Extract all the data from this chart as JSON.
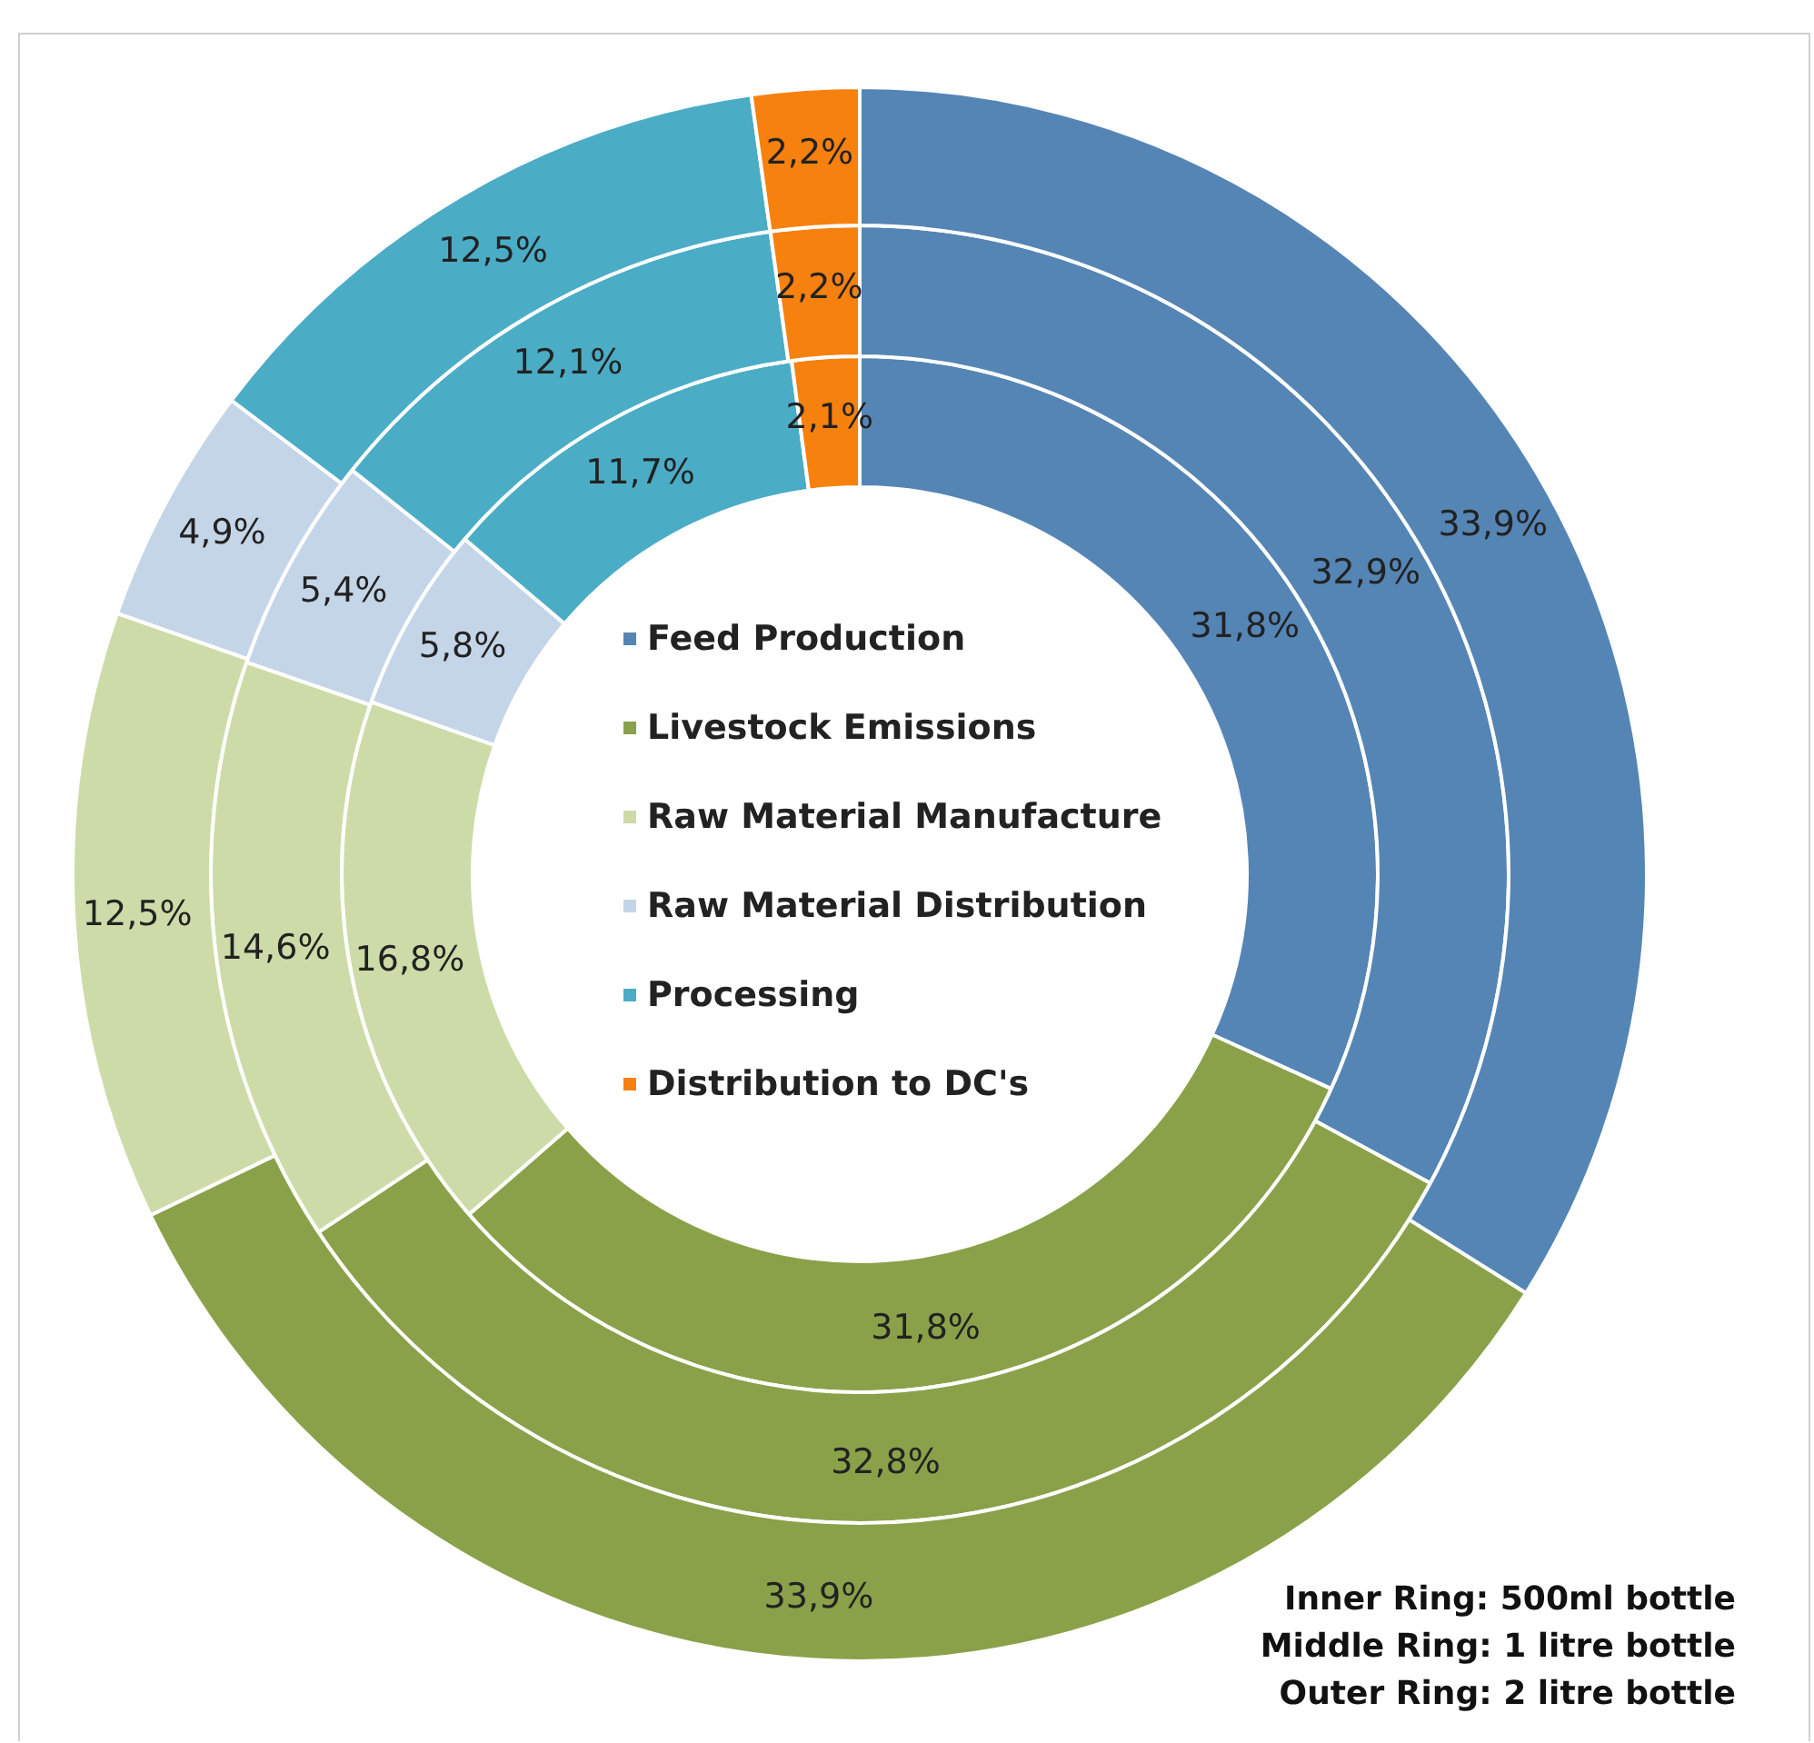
{
  "chart_data": {
    "type": "donut",
    "categories": [
      "Feed Production",
      "Livestock Emissions",
      "Raw Material Manufacture",
      "Raw Material Distribution",
      "Processing",
      "Distribution to DC's"
    ],
    "colors": [
      "#5585b5",
      "#8aa14a",
      "#cddba8",
      "#c5d5e8",
      "#4bacc6",
      "#f7810f"
    ],
    "series": [
      {
        "values": [
          31.8,
          31.8,
          16.8,
          5.8,
          11.7,
          2.1
        ],
        "value_labels": [
          "31,8%",
          "31,8%",
          "16,8%",
          "5,8%",
          "11,7%",
          "2,1%"
        ]
      },
      {
        "values": [
          32.9,
          32.8,
          14.6,
          5.4,
          12.1,
          2.2
        ],
        "value_labels": [
          "32,9%",
          "32,8%",
          "14,6%",
          "5,4%",
          "12,1%",
          "2,2%"
        ]
      },
      {
        "values": [
          33.9,
          33.9,
          12.5,
          4.9,
          12.5,
          2.2
        ],
        "value_labels": [
          "33,9%",
          "33,9%",
          "12,5%",
          "4,9%",
          "12,5%",
          "2,2%"
        ]
      }
    ],
    "legend": "center",
    "annotations": [
      "Inner Ring: 500ml bottle",
      "Middle Ring: 1 litre bottle",
      "Outer Ring: 2 litre bottle"
    ]
  }
}
